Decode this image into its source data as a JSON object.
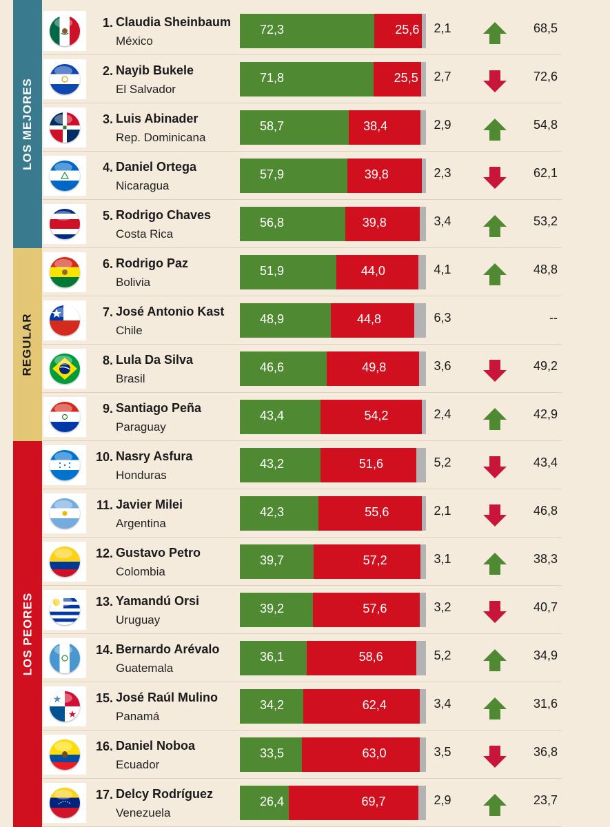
{
  "groups": [
    {
      "label": "LOS MEJORES",
      "color": "#3a7a8e",
      "text_color": "#ffffff"
    },
    {
      "label": "REGULAR",
      "color": "#e4c774",
      "text_color": "#1a1a1a"
    },
    {
      "label": "LOS PEORES",
      "color": "#d0101f",
      "text_color": "#ffffff"
    }
  ],
  "colors": {
    "approve": "#4f8a33",
    "disapprove": "#d0101f",
    "no_answer": "#b3b3b3",
    "arrow_up": "#4f8a33",
    "arrow_down": "#c8163b"
  },
  "chart_data": {
    "type": "bar",
    "stacked": true,
    "orientation": "horizontal",
    "scale": [
      0,
      100
    ],
    "series_names": [
      "approve",
      "disapprove",
      "no_answer"
    ],
    "rows": [
      {
        "rank": "1.",
        "name": "Claudia Sheinbaum",
        "country": "México",
        "group": 0,
        "flag": "mexico-flag-icon",
        "approve": 72.3,
        "approve_label": "72,3",
        "disapprove": 25.6,
        "disapprove_label": "25,6",
        "nsnc_label": "2,1",
        "trend": "up",
        "previous_label": "68,5"
      },
      {
        "rank": "2.",
        "name": "Nayib Bukele",
        "country": "El Salvador",
        "group": 0,
        "flag": "el-salvador-flag-icon",
        "approve": 71.8,
        "approve_label": "71,8",
        "disapprove": 25.5,
        "disapprove_label": "25,5",
        "nsnc_label": "2,7",
        "trend": "down",
        "previous_label": "72,6"
      },
      {
        "rank": "3.",
        "name": "Luis Abinader",
        "country": "Rep. Dominicana",
        "group": 0,
        "flag": "dominican-republic-flag-icon",
        "approve": 58.7,
        "approve_label": "58,7",
        "disapprove": 38.4,
        "disapprove_label": "38,4",
        "nsnc_label": "2,9",
        "trend": "up",
        "previous_label": "54,8"
      },
      {
        "rank": "4.",
        "name": "Daniel Ortega",
        "country": "Nicaragua",
        "group": 0,
        "flag": "nicaragua-flag-icon",
        "approve": 57.9,
        "approve_label": "57,9",
        "disapprove": 39.8,
        "disapprove_label": "39,8",
        "nsnc_label": "2,3",
        "trend": "down",
        "previous_label": "62,1"
      },
      {
        "rank": "5.",
        "name": "Rodrigo Chaves",
        "country": "Costa Rica",
        "group": 0,
        "flag": "costa-rica-flag-icon",
        "approve": 56.8,
        "approve_label": "56,8",
        "disapprove": 39.8,
        "disapprove_label": "39,8",
        "nsnc_label": "3,4",
        "trend": "up",
        "previous_label": "53,2"
      },
      {
        "rank": "6.",
        "name": "Rodrigo Paz",
        "country": "Bolivia",
        "group": 1,
        "flag": "bolivia-flag-icon",
        "approve": 51.9,
        "approve_label": "51,9",
        "disapprove": 44.0,
        "disapprove_label": "44,0",
        "nsnc_label": "4,1",
        "trend": "up",
        "previous_label": "48,8"
      },
      {
        "rank": "7.",
        "name": "José Antonio Kast",
        "country": "Chile",
        "group": 1,
        "flag": "chile-flag-icon",
        "approve": 48.9,
        "approve_label": "48,9",
        "disapprove": 44.8,
        "disapprove_label": "44,8",
        "nsnc_label": "6,3",
        "trend": "none",
        "previous_label": "--"
      },
      {
        "rank": "8.",
        "name": "Lula Da Silva",
        "country": "Brasil",
        "group": 1,
        "flag": "brazil-flag-icon",
        "approve": 46.6,
        "approve_label": "46,6",
        "disapprove": 49.8,
        "disapprove_label": "49,8",
        "nsnc_label": "3,6",
        "trend": "down",
        "previous_label": "49,2"
      },
      {
        "rank": "9.",
        "name": "Santiago Peña",
        "country": "Paraguay",
        "group": 1,
        "flag": "paraguay-flag-icon",
        "approve": 43.4,
        "approve_label": "43,4",
        "disapprove": 54.2,
        "disapprove_label": "54,2",
        "nsnc_label": "2,4",
        "trend": "up",
        "previous_label": "42,9"
      },
      {
        "rank": "10.",
        "name": "Nasry Asfura",
        "country": "Honduras",
        "group": 2,
        "flag": "honduras-flag-icon",
        "approve": 43.2,
        "approve_label": "43,2",
        "disapprove": 51.6,
        "disapprove_label": "51,6",
        "nsnc_label": "5,2",
        "trend": "down",
        "previous_label": "43,4"
      },
      {
        "rank": "11.",
        "name": "Javier Milei",
        "country": "Argentina",
        "group": 2,
        "flag": "argentina-flag-icon",
        "approve": 42.3,
        "approve_label": "42,3",
        "disapprove": 55.6,
        "disapprove_label": "55,6",
        "nsnc_label": "2,1",
        "trend": "down",
        "previous_label": "46,8"
      },
      {
        "rank": "12.",
        "name": "Gustavo Petro",
        "country": "Colombia",
        "group": 2,
        "flag": "colombia-flag-icon",
        "approve": 39.7,
        "approve_label": "39,7",
        "disapprove": 57.2,
        "disapprove_label": "57,2",
        "nsnc_label": "3,1",
        "trend": "up",
        "previous_label": "38,3"
      },
      {
        "rank": "13.",
        "name": "Yamandú Orsi",
        "country": "Uruguay",
        "group": 2,
        "flag": "uruguay-flag-icon",
        "approve": 39.2,
        "approve_label": "39,2",
        "disapprove": 57.6,
        "disapprove_label": "57,6",
        "nsnc_label": "3,2",
        "trend": "down",
        "previous_label": "40,7"
      },
      {
        "rank": "14.",
        "name": "Bernardo Arévalo",
        "country": "Guatemala",
        "group": 2,
        "flag": "guatemala-flag-icon",
        "approve": 36.1,
        "approve_label": "36,1",
        "disapprove": 58.6,
        "disapprove_label": "58,6",
        "nsnc_label": "5,2",
        "trend": "up",
        "previous_label": "34,9"
      },
      {
        "rank": "15.",
        "name": "José Raúl Mulino",
        "country": "Panamá",
        "group": 2,
        "flag": "panama-flag-icon",
        "approve": 34.2,
        "approve_label": "34,2",
        "disapprove": 62.4,
        "disapprove_label": "62,4",
        "nsnc_label": "3,4",
        "trend": "up",
        "previous_label": "31,6"
      },
      {
        "rank": "16.",
        "name": "Daniel Noboa",
        "country": "Ecuador",
        "group": 2,
        "flag": "ecuador-flag-icon",
        "approve": 33.5,
        "approve_label": "33,5",
        "disapprove": 63.0,
        "disapprove_label": "63,0",
        "nsnc_label": "3,5",
        "trend": "down",
        "previous_label": "36,8"
      },
      {
        "rank": "17.",
        "name": "Delcy Rodríguez",
        "country": "Venezuela",
        "group": 2,
        "flag": "venezuela-flag-icon",
        "approve": 26.4,
        "approve_label": "26,4",
        "disapprove": 69.7,
        "disapprove_label": "69,7",
        "nsnc_label": "2,9",
        "trend": "up",
        "previous_label": "23,7"
      }
    ]
  }
}
